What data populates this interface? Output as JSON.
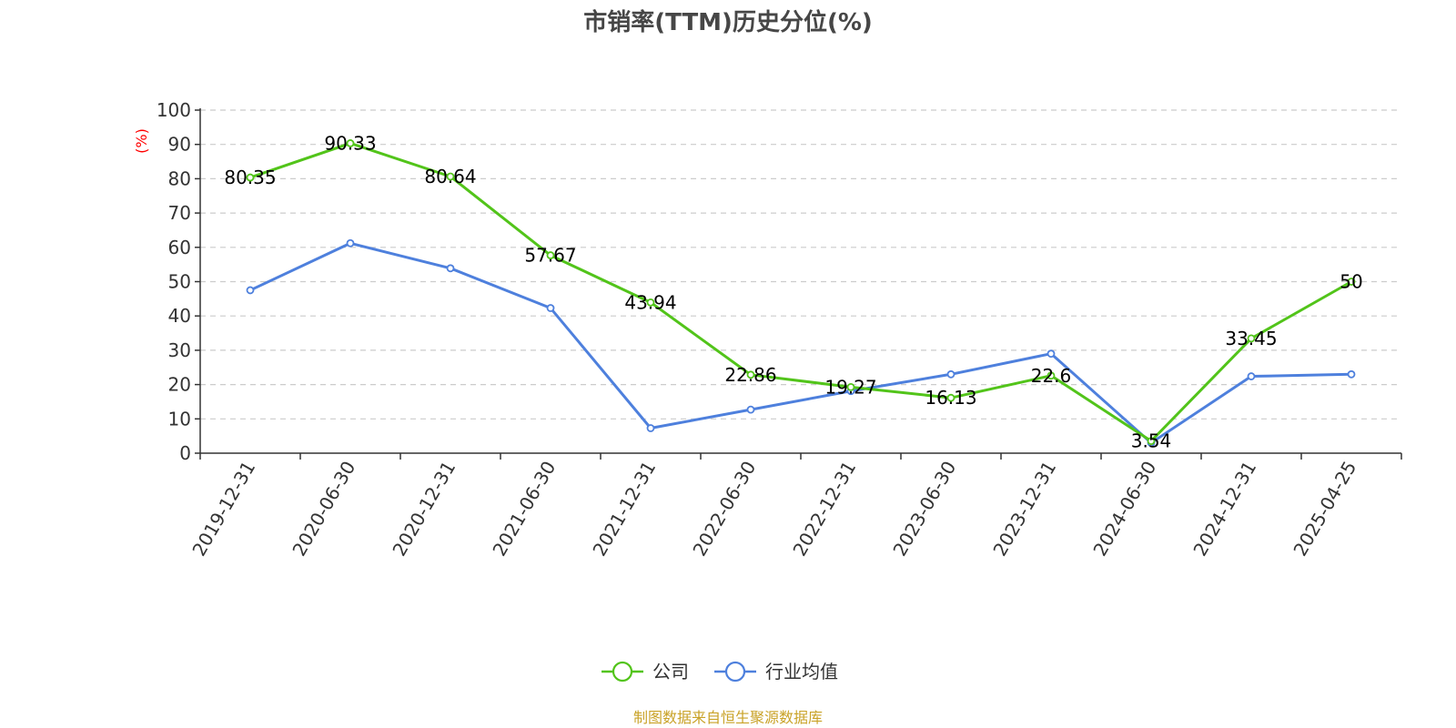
{
  "chart_data": {
    "type": "line",
    "title": "市销率(TTM)历史分位(%)",
    "ylabel": "(%)",
    "ylim": [
      0,
      100
    ],
    "yticks": [
      0,
      10,
      20,
      30,
      40,
      50,
      60,
      70,
      80,
      90,
      100
    ],
    "categories": [
      "2019-12-31",
      "2020-06-30",
      "2020-12-31",
      "2021-06-30",
      "2021-12-31",
      "2022-06-30",
      "2022-12-31",
      "2023-06-30",
      "2023-12-31",
      "2024-06-30",
      "2024-12-31",
      "2025-04-25"
    ],
    "series": [
      {
        "name": "公司",
        "color": "#52c41a",
        "values": [
          80.35,
          90.33,
          80.64,
          57.67,
          43.94,
          22.86,
          19.27,
          16.13,
          22.6,
          3.54,
          33.45,
          50
        ],
        "labels": [
          "80.35",
          "90.33",
          "80.64",
          "57.67",
          "43.94",
          "22.86",
          "19.27",
          "16.13",
          "22.6",
          "3.54",
          "33.45",
          "50"
        ]
      },
      {
        "name": "行业均值",
        "color": "#4e80dd",
        "values": [
          47.5,
          61.2,
          53.9,
          42.3,
          7.3,
          12.7,
          18.1,
          23.0,
          29.0,
          3.0,
          22.4,
          23.0
        ]
      }
    ],
    "grid": true,
    "legend_position": "bottom",
    "source": "制图数据来自恒生聚源数据库",
    "unit_color": "#ff0000",
    "source_color": "#c9a227"
  }
}
